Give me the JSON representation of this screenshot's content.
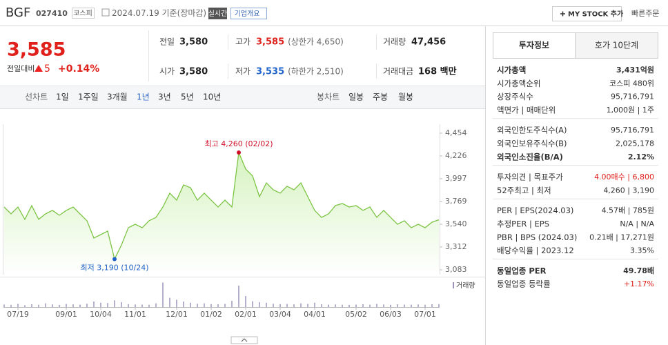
{
  "header": {
    "name": "BGF",
    "code": "027410",
    "market": "코스피",
    "date": "2024.07.19 기준(장마감)",
    "realtime": "실시간",
    "overview": "기업개요",
    "mystock": "MY STOCK 추가",
    "order": "빠른주문"
  },
  "price": {
    "current": "3,585",
    "change_label": "전일대비",
    "change": "5",
    "rate": "+0.14%"
  },
  "summary": [
    {
      "label": "전일",
      "value": "3,580"
    },
    {
      "label": "고가",
      "value": "3,585",
      "sub": "(상한가 4,650)"
    },
    {
      "label": "거래량",
      "value": "47,456"
    },
    {
      "label": "시가",
      "value": "3,580"
    },
    {
      "label": "저가",
      "value": "3,535",
      "sub": "(하한가 2,510)"
    },
    {
      "label": "거래대금",
      "value": "168 백만"
    }
  ],
  "periods": {
    "line_label": "선차트",
    "line": [
      "1일",
      "1주일",
      "3개월",
      "1년",
      "3년",
      "5년",
      "10년"
    ],
    "candle_label": "봉차트",
    "candle": [
      "일봉",
      "주봉",
      "월봉"
    ]
  },
  "chart_data": {
    "type": "area",
    "color": "#7cc444",
    "fill": "#d6f3c0",
    "categories": [
      null,
      null,
      "07/19",
      null,
      null,
      null,
      null,
      null,
      null,
      "09/01",
      null,
      null,
      null,
      null,
      "10/04",
      null,
      null,
      null,
      null,
      "11/01",
      null,
      null,
      null,
      null,
      null,
      "12/01",
      null,
      null,
      null,
      null,
      "01/02",
      null,
      null,
      null,
      null,
      "02/01",
      null,
      null,
      null,
      null,
      "03/04",
      null,
      null,
      null,
      null,
      "04/01",
      null,
      null,
      null,
      null,
      null,
      "05/02",
      null,
      null,
      null,
      null,
      "06/03",
      null,
      null,
      null,
      null,
      "07/01",
      null,
      null
    ],
    "values": [
      3713,
      3644,
      3713,
      3589,
      3727,
      3589,
      3644,
      3679,
      3630,
      3679,
      3713,
      3644,
      3575,
      3402,
      3436,
      3471,
      3190,
      3332,
      3505,
      3540,
      3505,
      3575,
      3609,
      3713,
      3852,
      3782,
      3935,
      3907,
      3782,
      3852,
      3782,
      3713,
      3782,
      3713,
      4260,
      4094,
      4025,
      3817,
      3955,
      3886,
      3852,
      3921,
      3886,
      3955,
      3817,
      3679,
      3609,
      3644,
      3727,
      3748,
      3713,
      3727,
      3679,
      3713,
      3609,
      3679,
      3609,
      3540,
      3575,
      3505,
      3540,
      3505,
      3561,
      3585
    ],
    "ylim": [
      3083,
      4454
    ],
    "yticks": [
      {
        "value": 4454,
        "label": "4,454"
      },
      {
        "value": 4226,
        "label": "4,226"
      },
      {
        "value": 3997,
        "label": "3,997"
      },
      {
        "value": 3769,
        "label": "3,769"
      },
      {
        "value": 3540,
        "label": "3,540"
      },
      {
        "value": 3312,
        "label": "3,312"
      },
      {
        "value": 3083,
        "label": "3,083"
      }
    ],
    "max_label": "최고 4,260 (02/02)",
    "min_label": "최저 3,190 (10/24)",
    "grid": false,
    "volume": {
      "name": "거래량",
      "color": "#9d93bd",
      "ylim": [
        0,
        450000
      ],
      "values": [
        40000,
        35000,
        52000,
        30000,
        45000,
        38000,
        60000,
        42000,
        36000,
        50000,
        44000,
        39000,
        55000,
        90000,
        70000,
        65000,
        110000,
        80000,
        48000,
        42000,
        40000,
        38000,
        60000,
        400000,
        150000,
        120000,
        90000,
        70000,
        55000,
        60000,
        48000,
        45000,
        52000,
        100000,
        350000,
        180000,
        95000,
        80000,
        70000,
        55000,
        48000,
        50000,
        44000,
        60000,
        52000,
        70000,
        45000,
        40000,
        42000,
        38000,
        36000,
        40000,
        45000,
        39000,
        52000,
        41000,
        37000,
        44000,
        40000,
        38000,
        42000,
        36000,
        45000,
        47456
      ]
    }
  },
  "invest": {
    "tabs": [
      "투자정보",
      "호가 10단계"
    ],
    "groups": [
      [
        {
          "label": "시가총액",
          "value": "3,431억원"
        },
        {
          "label": "시가총액순위",
          "value": "코스피 480위"
        },
        {
          "label": "상장주식수",
          "value": "95,716,791"
        },
        {
          "label": "액면가 | 매매단위",
          "value": "1,000원 | 1주"
        }
      ],
      [
        {
          "label": "외국인한도주식수(A)",
          "value": "95,716,791"
        },
        {
          "label": "외국인보유주식수(B)",
          "value": "2,025,178"
        },
        {
          "label": "외국인소진율(B/A)",
          "value": "2.12%"
        }
      ],
      [
        {
          "label": "투자의견 | 목표주가",
          "value": "4.00매수 | 6,800"
        },
        {
          "label": "52주최고 | 최저",
          "value": "4,260 | 3,190"
        }
      ],
      [
        {
          "label": "PER | EPS(2024.03)",
          "value": "4.57배 | 785원"
        },
        {
          "label": "추정PER | EPS",
          "value": "N/A | N/A"
        },
        {
          "label": "PBR | BPS (2024.03)",
          "value": "0.21배 | 17,271원"
        },
        {
          "label": "배당수익률 | 2023.12",
          "value": "3.35%"
        }
      ],
      [
        {
          "label": "동일업종 PER",
          "value": "49.78배"
        },
        {
          "label": "동일업종 등락률",
          "value": "+1.17%"
        }
      ]
    ]
  }
}
